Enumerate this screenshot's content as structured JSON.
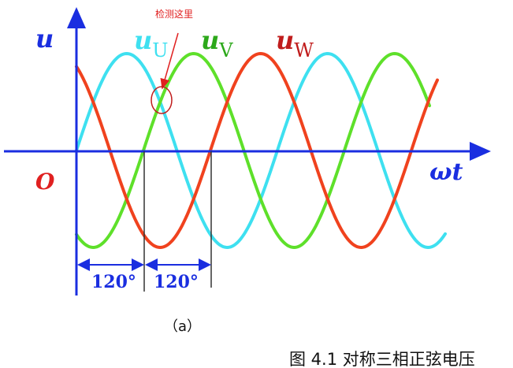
{
  "annotation": {
    "text": "检测这里",
    "color": "#e02020"
  },
  "axes": {
    "y_label": "u",
    "x_label": "ωt",
    "origin_label": "O",
    "color": "#1a2ee0"
  },
  "series": [
    {
      "name": "u",
      "subscript": "U",
      "color": "#3ee0f0",
      "phase_deg": 0
    },
    {
      "name": "u",
      "subscript": "V",
      "color": "#5ee02a",
      "phase_deg": -120
    },
    {
      "name": "u",
      "subscript": "W",
      "color": "#f0421e",
      "phase_deg": 120
    }
  ],
  "angle_marks": [
    "120°",
    "120°"
  ],
  "subfigure_label": "（a）",
  "caption": "图 4.1 对称三相正弦电压"
}
